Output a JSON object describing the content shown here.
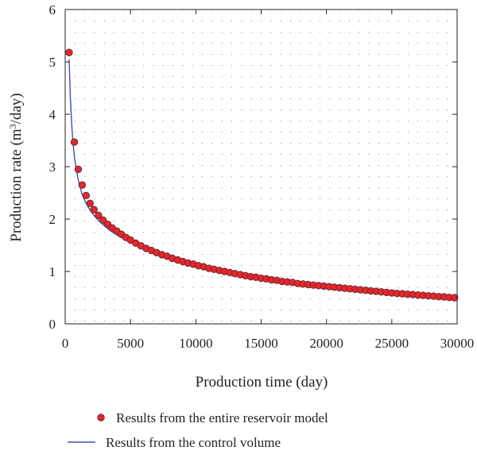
{
  "chart_data": {
    "type": "scatter",
    "xlabel": "Production time (day)",
    "ylabel_main": "Production rate (m",
    "ylabel_sup": "3",
    "ylabel_tail": "/day)",
    "xlim": [
      0,
      30000
    ],
    "ylim": [
      0,
      6
    ],
    "x_ticks": [
      0,
      5000,
      10000,
      15000,
      20000,
      25000,
      30000
    ],
    "y_ticks": [
      0,
      1,
      2,
      3,
      4,
      5,
      6
    ],
    "x_tick_labels": [
      "0",
      "5000",
      "10000",
      "15000",
      "20000",
      "25000",
      "30000"
    ],
    "y_tick_labels": [
      "0",
      "1",
      "2",
      "3",
      "4",
      "5",
      "6"
    ],
    "grid": "dotted",
    "legend_position": "bottom",
    "colors": {
      "scatter_fill": "#e8252a",
      "scatter_edge": "#6a2a36",
      "line": "#3f51b5",
      "axis": "#231f20",
      "grid": "#555555"
    },
    "series": [
      {
        "name": "Results from the entire reservoir model",
        "kind": "scatter",
        "x": [
          300,
          700,
          1000,
          1300,
          1600,
          1900,
          2200,
          2550,
          2900,
          3250,
          3600,
          3950,
          4300,
          4650,
          5000,
          5400,
          5800,
          6200,
          6600,
          7000,
          7400,
          7800,
          8200,
          8600,
          9000,
          9400,
          9800,
          10200,
          10600,
          11000,
          11400,
          11800,
          12200,
          12600,
          13000,
          13400,
          13800,
          14200,
          14600,
          15000,
          15400,
          15800,
          16200,
          16600,
          17000,
          17400,
          17800,
          18200,
          18600,
          19000,
          19400,
          19800,
          20200,
          20600,
          21000,
          21400,
          21800,
          22200,
          22600,
          23000,
          23400,
          23800,
          24200,
          24600,
          25000,
          25400,
          25800,
          26200,
          26600,
          27000,
          27400,
          27800,
          28200,
          28600,
          29000,
          29400,
          29800
        ],
        "y": [
          5.18,
          3.47,
          2.95,
          2.65,
          2.45,
          2.3,
          2.18,
          2.07,
          1.98,
          1.9,
          1.83,
          1.77,
          1.71,
          1.65,
          1.6,
          1.54,
          1.49,
          1.44,
          1.4,
          1.36,
          1.32,
          1.29,
          1.25,
          1.22,
          1.19,
          1.16,
          1.14,
          1.11,
          1.09,
          1.06,
          1.04,
          1.02,
          1.0,
          0.98,
          0.96,
          0.94,
          0.92,
          0.9,
          0.89,
          0.87,
          0.86,
          0.84,
          0.83,
          0.81,
          0.8,
          0.79,
          0.77,
          0.76,
          0.75,
          0.74,
          0.73,
          0.72,
          0.71,
          0.7,
          0.69,
          0.68,
          0.67,
          0.66,
          0.65,
          0.64,
          0.63,
          0.62,
          0.61,
          0.6,
          0.59,
          0.58,
          0.575,
          0.565,
          0.56,
          0.55,
          0.545,
          0.535,
          0.53,
          0.52,
          0.515,
          0.505,
          0.5
        ]
      },
      {
        "name": "Results from the control volume",
        "kind": "line",
        "x": [
          300,
          400,
          500,
          600,
          700,
          850,
          1000,
          1150,
          1300,
          1600,
          1900,
          2200,
          2600,
          3000,
          3500,
          4000,
          4500,
          5000,
          6000,
          7000,
          8000,
          9000,
          10000,
          11000,
          12000,
          13000,
          14000,
          15000,
          16000,
          17000,
          18000,
          19000,
          20000,
          21000,
          22000,
          23000,
          24000,
          25000,
          26000,
          27000,
          28000,
          29000,
          30000
        ],
        "y": [
          5.05,
          4.3,
          3.8,
          3.45,
          3.2,
          2.95,
          2.75,
          2.6,
          2.47,
          2.3,
          2.17,
          2.07,
          1.96,
          1.87,
          1.77,
          1.69,
          1.62,
          1.56,
          1.43,
          1.33,
          1.24,
          1.16,
          1.09,
          1.03,
          0.98,
          0.94,
          0.9,
          0.86,
          0.82,
          0.79,
          0.76,
          0.73,
          0.7,
          0.68,
          0.66,
          0.64,
          0.62,
          0.6,
          0.58,
          0.56,
          0.54,
          0.52,
          0.5
        ]
      }
    ]
  }
}
